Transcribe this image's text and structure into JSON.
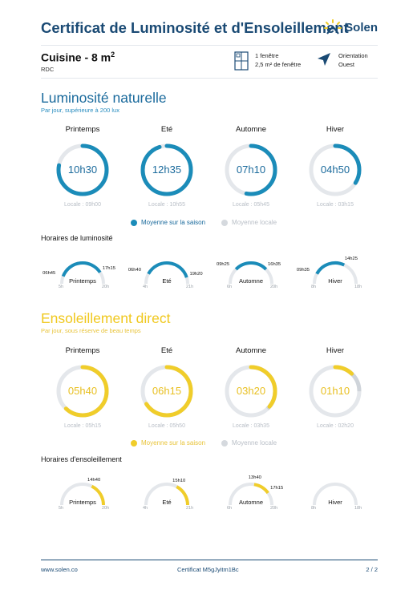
{
  "header": {
    "title": "Certificat de Luminosité et d'Ensoleillement",
    "brand": "Solen"
  },
  "room": {
    "name": "Cuisine - 8 m",
    "area_exp": "2",
    "level": "RDC"
  },
  "window_info": {
    "line1": "1 fenêtre",
    "line2": "2,5 m² de fenêtre"
  },
  "orientation": {
    "line1": "Orientation",
    "line2": "Ouest"
  },
  "colors": {
    "light_accent": "#1b8cb9",
    "sun_accent": "#f0cd2a",
    "track": "#e4e7eb",
    "dark_blue": "#1a4a74"
  },
  "luminosity": {
    "title": "Luminosité naturelle",
    "subtitle": "Par jour, supérieure à 200 lux",
    "seasons": [
      {
        "name": "Printemps",
        "value": "10h30",
        "local": "Locale : 09h00",
        "fraction": 0.78,
        "local_fraction": 0.67
      },
      {
        "name": "Eté",
        "value": "12h35",
        "local": "Locale : 10h55",
        "fraction": 0.95,
        "local_fraction": 0.82
      },
      {
        "name": "Automne",
        "value": "07h10",
        "local": "Locale : 05h45",
        "fraction": 0.53,
        "local_fraction": 0.43
      },
      {
        "name": "Hiver",
        "value": "04h50",
        "local": "Locale : 03h15",
        "fraction": 0.34,
        "local_fraction": 0.24
      }
    ],
    "legend": {
      "season": "Moyenne sur la saison",
      "local": "Moyenne locale"
    },
    "hours_title": "Horaires de luminosité",
    "gauges": [
      {
        "name": "Printemps",
        "start_label": "06h45",
        "end_label": "17h15",
        "min": "5h",
        "max": "20h",
        "start": 6.75,
        "end": 17.25,
        "lo": 5,
        "hi": 20
      },
      {
        "name": "Eté",
        "start_label": "06h40",
        "end_label": "19h20",
        "min": "4h",
        "max": "21h",
        "start": 6.67,
        "end": 19.33,
        "lo": 4,
        "hi": 21
      },
      {
        "name": "Automne",
        "start_label": "09h25",
        "end_label": "16h35",
        "min": "6h",
        "max": "20h",
        "start": 9.42,
        "end": 16.58,
        "lo": 6,
        "hi": 20
      },
      {
        "name": "Hiver",
        "start_label": "09h35",
        "end_label": "14h25",
        "min": "8h",
        "max": "18h",
        "start": 9.58,
        "end": 14.42,
        "lo": 8,
        "hi": 18
      }
    ]
  },
  "sunshine": {
    "title": "Ensoleillement direct",
    "subtitle": "Par jour, sous réserve de beau temps",
    "seasons": [
      {
        "name": "Printemps",
        "value": "05h40",
        "local": "Locale : 05h15",
        "fraction": 0.62,
        "local_fraction": 0.58
      },
      {
        "name": "Eté",
        "value": "06h15",
        "local": "Locale : 05h50",
        "fraction": 0.66,
        "local_fraction": 0.62
      },
      {
        "name": "Automne",
        "value": "03h20",
        "local": "Locale : 03h35",
        "fraction": 0.36,
        "local_fraction": 0.38
      },
      {
        "name": "Hiver",
        "value": "01h10",
        "local": "Locale : 02h20",
        "fraction": 0.12,
        "local_fraction": 0.25
      }
    ],
    "legend": {
      "season": "Moyenne sur la saison",
      "local": "Moyenne locale"
    },
    "hours_title": "Horaires d'ensoleillement",
    "gauges": [
      {
        "name": "Printemps",
        "start_label": "14h40",
        "end_label": "",
        "min": "5h",
        "max": "20h",
        "start": 14.67,
        "end": 20,
        "lo": 5,
        "hi": 20
      },
      {
        "name": "Eté",
        "start_label": "15h10",
        "end_label": "",
        "min": "4h",
        "max": "21h",
        "start": 15.17,
        "end": 21,
        "lo": 4,
        "hi": 21
      },
      {
        "name": "Automne",
        "start_label": "13h40",
        "end_label": "17h15",
        "min": "6h",
        "max": "20h",
        "start": 13.67,
        "end": 17.25,
        "lo": 6,
        "hi": 20
      },
      {
        "name": "Hiver",
        "start_label": "",
        "end_label": "",
        "min": "8h",
        "max": "18h",
        "start": 0,
        "end": 0,
        "lo": 8,
        "hi": 18
      }
    ]
  },
  "footer": {
    "website": "www.solen.co",
    "certificate": "Certificat M5gJyitm1Bc",
    "page": "2 / 2"
  }
}
